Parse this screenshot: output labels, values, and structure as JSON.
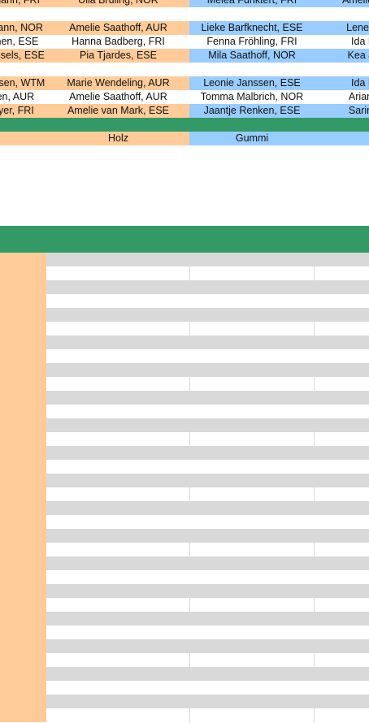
{
  "block1": [
    [
      "Inga Oltmann, FRI",
      "Ulla Bruling, NOR",
      "Melea Funktert, FRI",
      "Amelie ..."
    ],
    [
      "Inga Oltmann, NOR",
      "Amelie Saathoff, AUR",
      "Lieke Barfknecht, ESE",
      "Lene M"
    ],
    [
      "Maja Ehnen, ESE",
      "Hanna Badberg, FRI",
      "Fenna Fröhling, FRI",
      "Ida H"
    ],
    [
      "Greta Wessels, ESE",
      "Pia Tjardes, ESE",
      "Mila Saathoff, NOR",
      "Kea Ja"
    ]
  ],
  "block2": [
    [
      "Lotta Janssen, WTM",
      "Marie Wendeling, AUR",
      "Leonie Janssen, ESE",
      "Ida H"
    ],
    [
      "Ella Ihnen, AUR",
      "Amelie Saathoff, AUR",
      "Tomma Malbrich, NOR",
      "Ariane"
    ],
    [
      "Jule Meyer, FRI",
      "Amelie van Mark, ESE",
      "Jaantje Renken, ESE",
      "Sarina"
    ]
  ],
  "materials": [
    "",
    "Holz",
    "Gummi",
    ""
  ]
}
